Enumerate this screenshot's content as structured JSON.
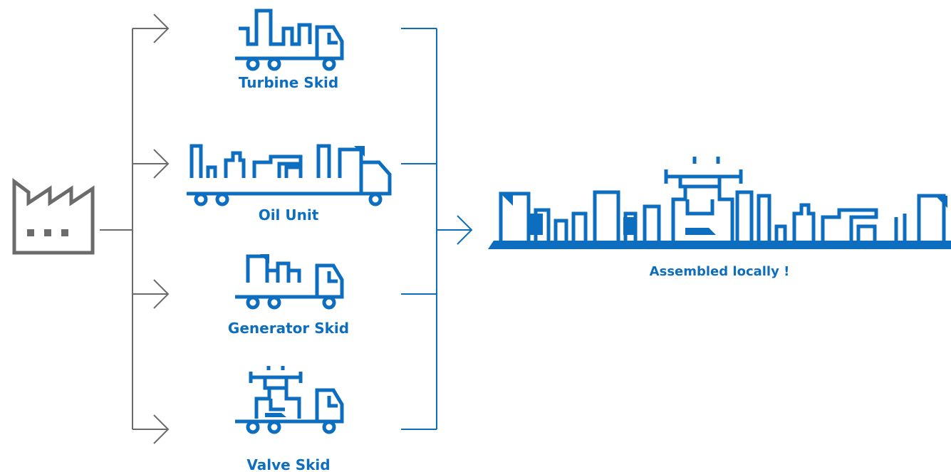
{
  "nodes": [
    {
      "label": "Turbine Skid"
    },
    {
      "label": "Oil Unit"
    },
    {
      "label": "Generator Skid"
    },
    {
      "label": "Valve Skid"
    }
  ],
  "result": {
    "label": "Assembled locally !"
  }
}
